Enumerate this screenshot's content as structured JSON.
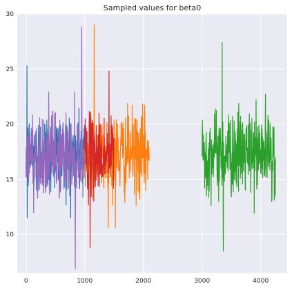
{
  "chart_data": {
    "type": "line",
    "title": "Sampled values for beta0",
    "xlabel": "",
    "ylabel": "",
    "xlim": [
      -150,
      4450
    ],
    "ylim": [
      6.5,
      30
    ],
    "xticks": [
      0,
      1000,
      2000,
      3000,
      4000
    ],
    "yticks": [
      10,
      15,
      20,
      25,
      30
    ],
    "grid": true,
    "background": "#EAEAF2",
    "grid_color": "#FFFFFF",
    "series": [
      {
        "color": "#1F77B4",
        "x_range": [
          0,
          1000
        ],
        "y_center": 17.3,
        "y_spread": 1.8,
        "y_min": 11.5,
        "y_max": 25.3
      },
      {
        "color": "#FF7F0E",
        "x_range": [
          1000,
          2100
        ],
        "y_center": 17.3,
        "y_spread": 1.9,
        "y_min": 10.6,
        "y_max": 29.0
      },
      {
        "color": "#2CA02C",
        "x_range": [
          3000,
          4250
        ],
        "y_center": 17.4,
        "y_spread": 1.9,
        "y_min": 8.5,
        "y_max": 27.4
      },
      {
        "color": "#D62728",
        "x_range": [
          1000,
          1500
        ],
        "y_center": 17.2,
        "y_spread": 1.8,
        "y_min": 8.8,
        "y_max": 24.8
      },
      {
        "color": "#9467BD",
        "x_range": [
          0,
          1000
        ],
        "y_center": 17.2,
        "y_spread": 1.9,
        "y_min": 6.9,
        "y_max": 28.8
      }
    ]
  }
}
